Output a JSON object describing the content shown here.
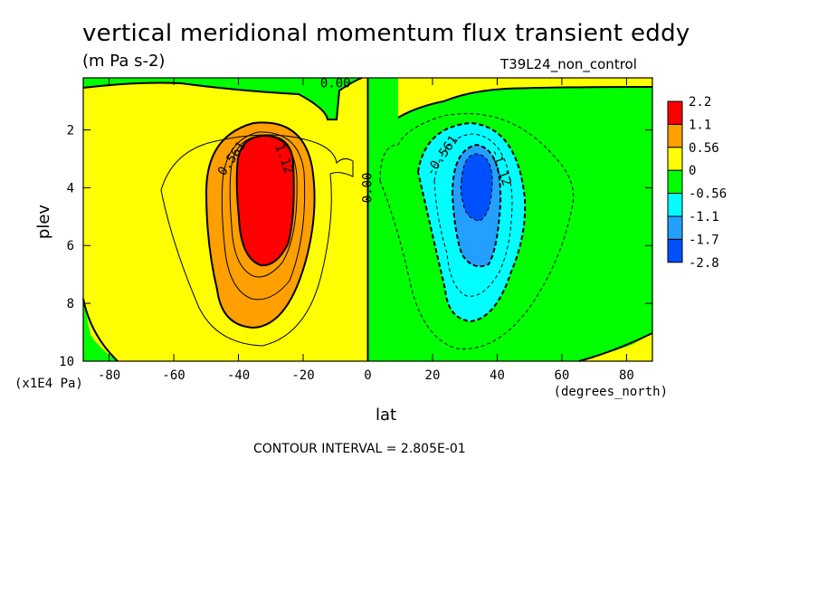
{
  "header": {
    "title": "vertical meridional momentum flux transient eddy",
    "units": "(m Pa s-2)",
    "dataset": "T39L24_non_control"
  },
  "footer": {
    "contour_interval": "CONTOUR INTERVAL = 2.805E-01"
  },
  "chart_data": {
    "type": "heatmap",
    "title": "vertical meridional momentum flux transient eddy",
    "subtitle": "(m Pa s-2)",
    "xlabel": "lat",
    "xunits": "(degrees_north)",
    "ylabel": "plev",
    "yunits": "(x1E4 Pa)",
    "xlim": [
      -88,
      88
    ],
    "ylim": [
      10,
      0.2
    ],
    "x_ticks": [
      -80,
      -60,
      -40,
      -20,
      0,
      20,
      40,
      60,
      80
    ],
    "x_tick_labels": [
      "-80",
      "-60",
      "-40",
      "-20",
      "0",
      "20",
      "40",
      "60",
      "80"
    ],
    "y_ticks": [
      2,
      4,
      6,
      8,
      10
    ],
    "y_tick_labels": [
      "2",
      "4",
      "6",
      "8",
      "10"
    ],
    "colorbar": {
      "labels": [
        "2.2",
        "1.1",
        "0.56",
        "0",
        "-0.56",
        "-1.1",
        "-1.7",
        "-2.8"
      ],
      "colors": [
        "#ff0000",
        "#ff9f00",
        "#ffff00",
        "#00ff00",
        "#00ffff",
        "#23a0ff",
        "#0050ff"
      ]
    },
    "contour_labels": [
      {
        "text": "0.561",
        "lat": -42,
        "plev": 3.0,
        "angle": -55
      },
      {
        "text": "1.12",
        "lat": -26,
        "plev": 3.0,
        "angle": 70
      },
      {
        "text": "0.00",
        "lat": 0,
        "plev": 4.0,
        "angle": -90
      },
      {
        "text": "0.00",
        "lat": -10,
        "plev": 0.4,
        "angle": 0
      },
      {
        "text": "-0.561",
        "lat": 23,
        "plev": 2.9,
        "angle": -55
      },
      {
        "text": "-1.12",
        "lat": 41,
        "plev": 3.3,
        "angle": 70
      }
    ],
    "features": [
      {
        "name": "positive maximum",
        "lat": -33,
        "plev": 4,
        "value": "> 2.2"
      },
      {
        "name": "negative minimum",
        "lat": 32,
        "plev": 4,
        "value": "< -2.8"
      }
    ],
    "grid": false,
    "legend_position": "right"
  }
}
